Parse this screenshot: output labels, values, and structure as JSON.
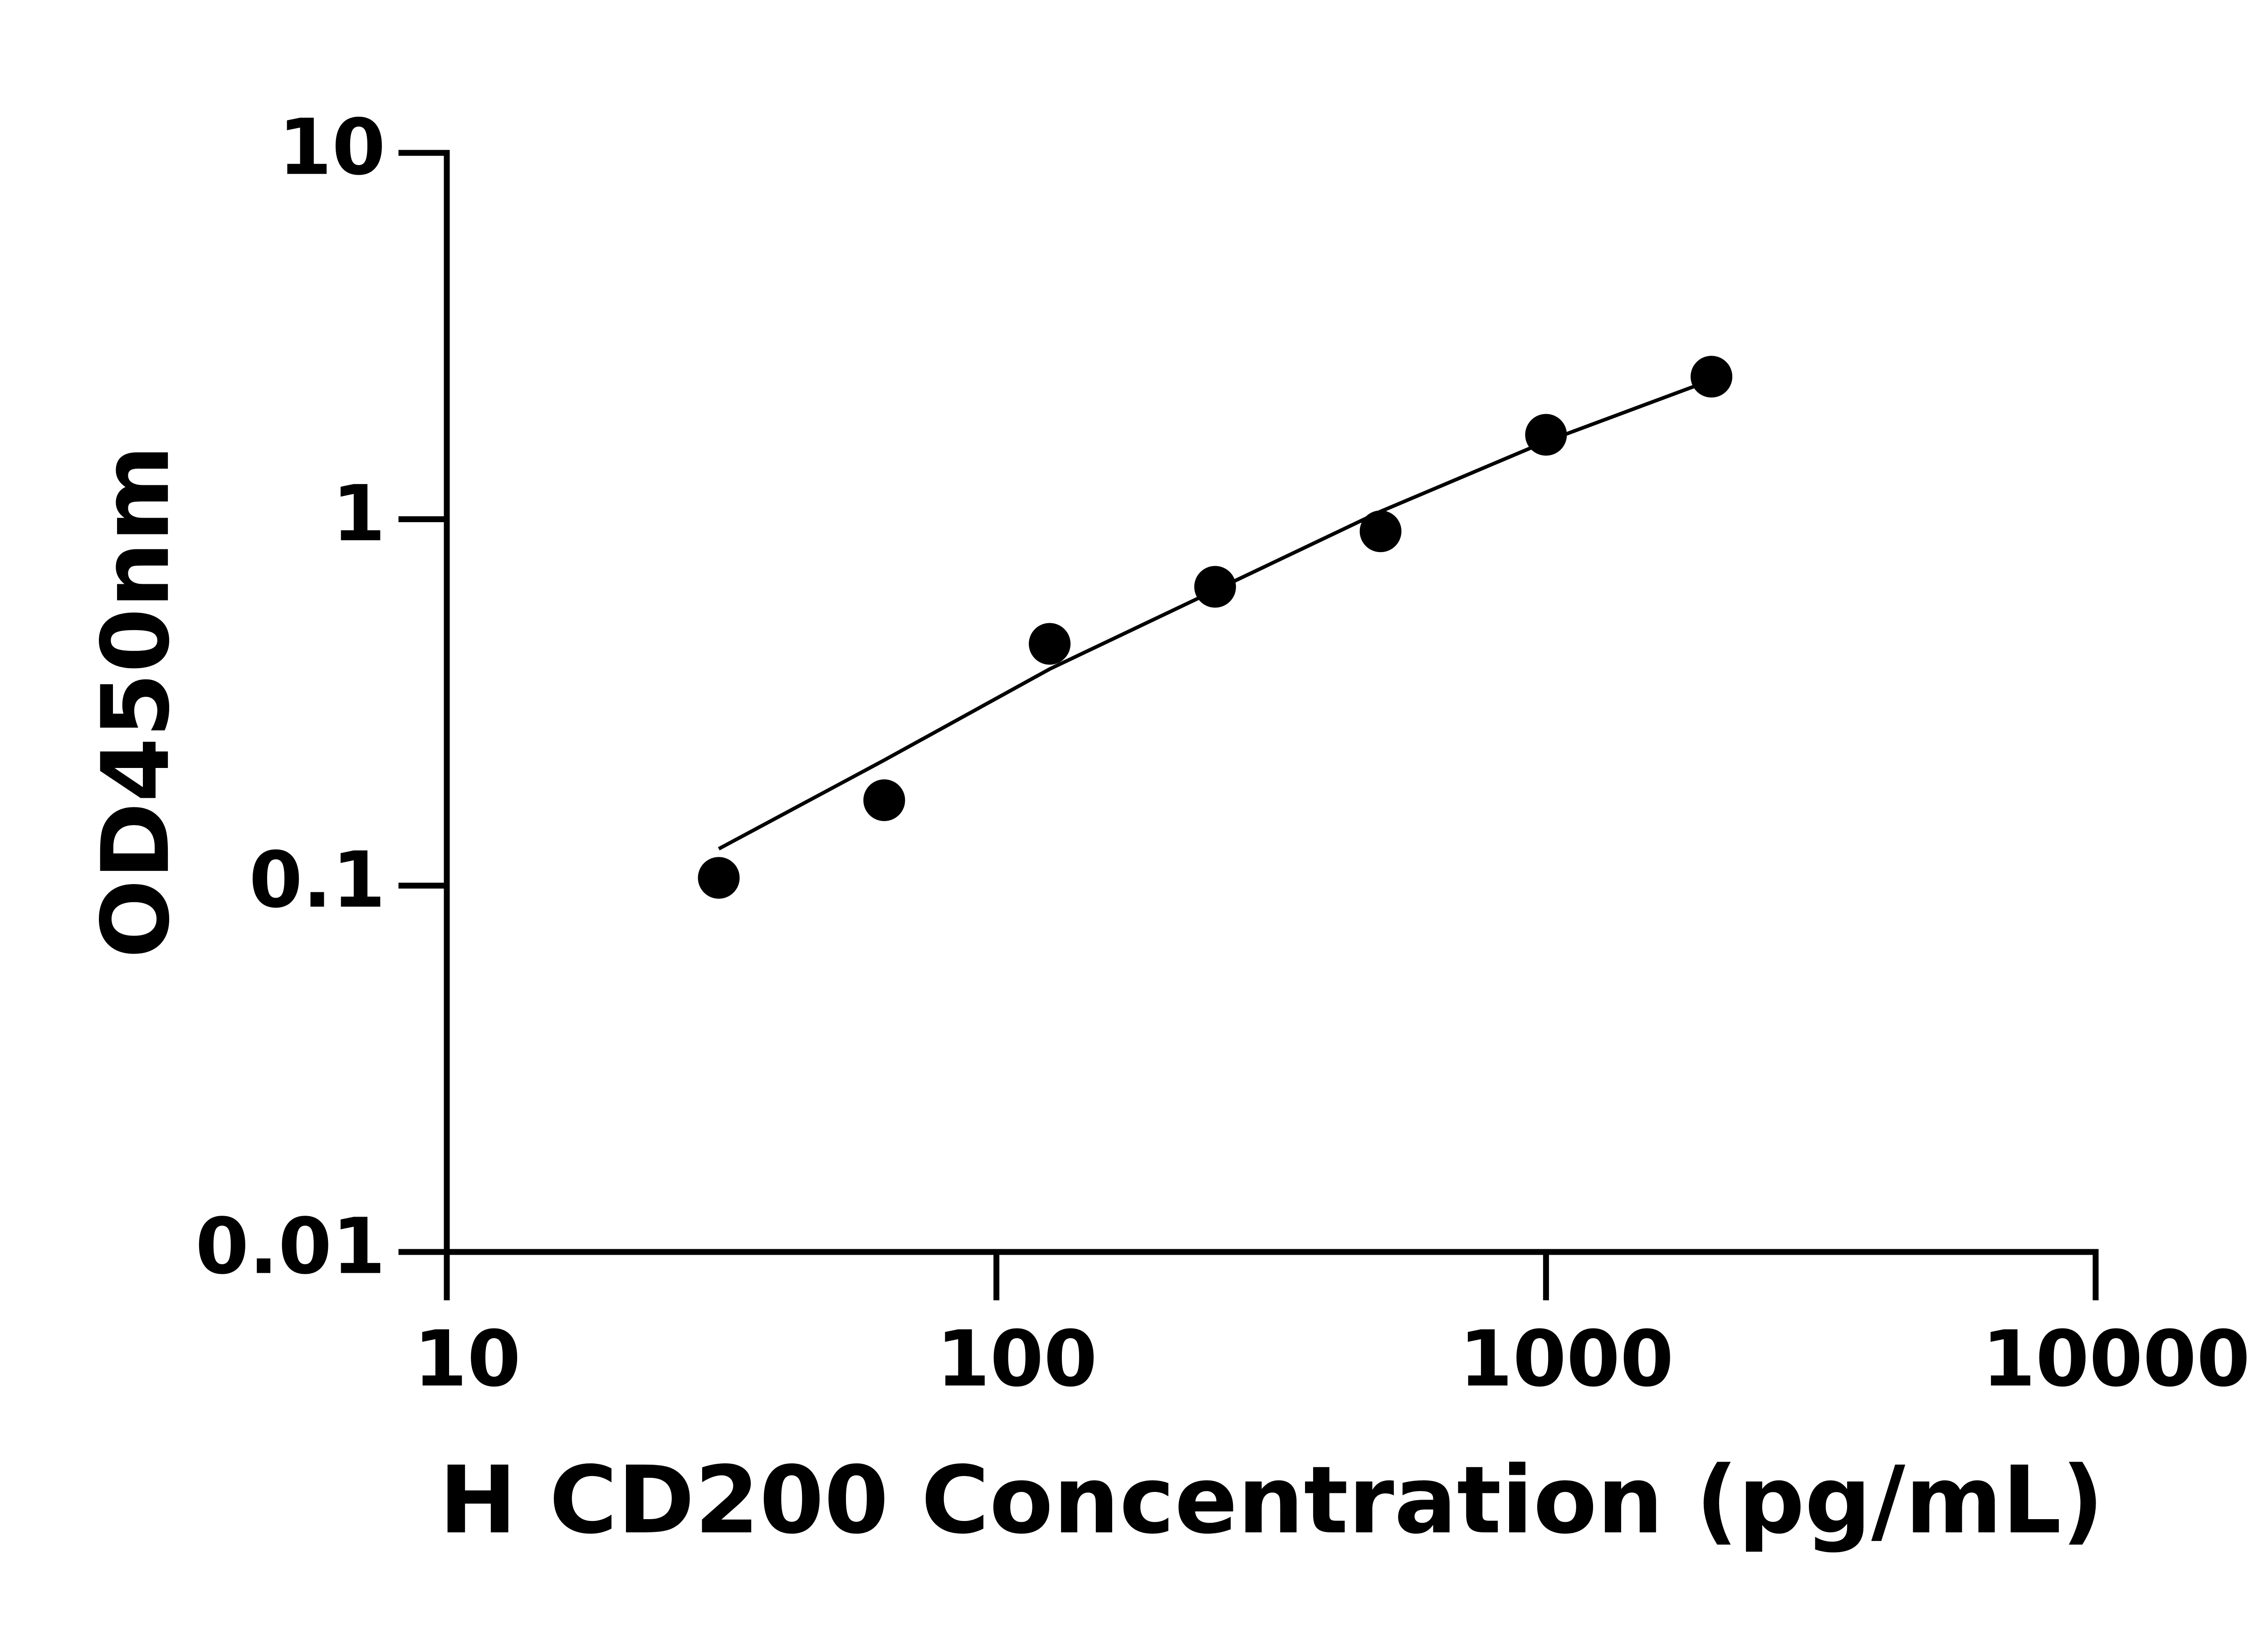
{
  "chart_data": {
    "type": "scatter",
    "xlabel": "H CD200 Concentration (pg/mL)",
    "ylabel": "OD450nm",
    "x": [
      31.25,
      62.5,
      125,
      250,
      500,
      1000,
      2000
    ],
    "values": [
      0.105,
      0.171,
      0.457,
      0.654,
      0.927,
      1.7,
      2.45
    ],
    "fit_x": [
      31.25,
      62.5,
      125,
      250,
      500,
      1000,
      2000
    ],
    "fit_values": [
      0.126,
      0.22,
      0.39,
      0.64,
      1.05,
      1.63,
      2.4
    ],
    "color": "#000000",
    "xscale": "log",
    "yscale": "log",
    "xlim": [
      10,
      10000
    ],
    "ylim": [
      0.01,
      10
    ],
    "xticks": [
      10,
      100,
      1000,
      10000
    ],
    "yticks": [
      0.01,
      0.1,
      1,
      10
    ]
  }
}
